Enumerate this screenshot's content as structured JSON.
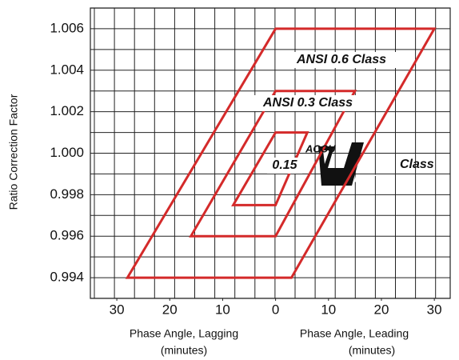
{
  "chart_data": {
    "type": "line",
    "y_label": "Ratio Correction Factor",
    "x_labels": [
      "Phase Angle, Lagging",
      "(minutes)",
      "Phase Angle, Leading",
      "(minutes)"
    ],
    "xlim": [
      -35,
      33
    ],
    "ylim": [
      0.993,
      1.007
    ],
    "xticks": [
      {
        "value": -30,
        "label": "30"
      },
      {
        "value": -20,
        "label": "20"
      },
      {
        "value": -10,
        "label": "10"
      },
      0,
      10,
      20,
      30
    ],
    "yticks": [
      0.994,
      0.996,
      0.998,
      {
        "value": 1,
        "label": "1.000"
      },
      1.002,
      1.004,
      1.006
    ],
    "grid": true,
    "series": [
      {
        "name": "ANSI 0.6 Class",
        "color": "#d42a2a",
        "x": [
          0,
          30,
          3,
          -28
        ],
        "values": [
          1.006,
          1.006,
          0.994,
          0.994
        ]
      },
      {
        "name": "ANSI 0.3 Class",
        "color": "#d42a2a",
        "x": [
          0,
          15,
          0,
          -16
        ],
        "values": [
          1.003,
          1.003,
          0.996,
          0.996
        ]
      },
      {
        "name": "0.15",
        "color": "#d42a2a",
        "x": [
          0,
          6,
          0,
          -8
        ],
        "values": [
          1.001,
          1.001,
          0.9975,
          0.9975
        ]
      }
    ],
    "annotations": [
      "ACCU",
      "BUTE",
      "Class"
    ]
  }
}
